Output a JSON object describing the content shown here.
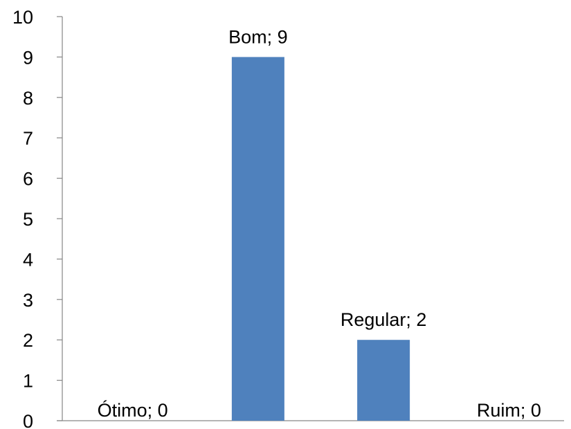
{
  "chart_data": {
    "type": "bar",
    "categories": [
      "Ótimo",
      "Bom",
      "Regular",
      "Ruim"
    ],
    "values": [
      0,
      9,
      2,
      0
    ],
    "data_labels": [
      "Ótimo; 0",
      "Bom; 9",
      "Regular; 2",
      "Ruim; 0"
    ],
    "title": "",
    "xlabel": "",
    "ylabel": "",
    "ylim": [
      0,
      10
    ],
    "yticks": [
      "0",
      "1",
      "2",
      "3",
      "4",
      "5",
      "6",
      "7",
      "8",
      "9",
      "10"
    ],
    "grid": false,
    "legend": "none",
    "bar_color": "#4F81BD",
    "axis_color": "#868686"
  }
}
